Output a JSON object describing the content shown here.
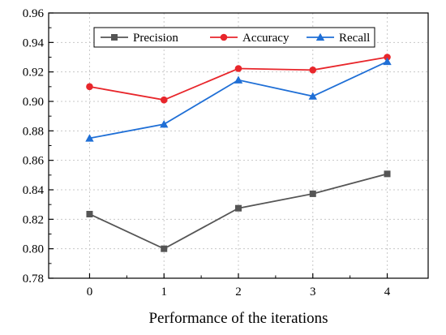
{
  "chart_data": {
    "type": "line",
    "title": "",
    "xlabel": "Performance of the iterations",
    "ylabel": "",
    "categories": [
      "0",
      "1",
      "2",
      "3",
      "4"
    ],
    "x": [
      0,
      1,
      2,
      3,
      4
    ],
    "xlim": [
      -0.55,
      4.55
    ],
    "ylim": [
      0.78,
      0.96
    ],
    "yticks": [
      "0.78",
      "0.80",
      "0.82",
      "0.84",
      "0.86",
      "0.88",
      "0.90",
      "0.92",
      "0.94",
      "0.96"
    ],
    "grid": true,
    "legend_position": "top-center",
    "series": [
      {
        "name": "Precision",
        "color": "#555555",
        "marker": "square",
        "values": [
          0.8235,
          0.8,
          0.8275,
          0.8373,
          0.8508
        ]
      },
      {
        "name": "Accuracy",
        "color": "#e8262b",
        "marker": "circle",
        "values": [
          0.91,
          0.901,
          0.9223,
          0.9213,
          0.93
        ]
      },
      {
        "name": "Recall",
        "color": "#1f6fd6",
        "marker": "triangle",
        "values": [
          0.875,
          0.8845,
          0.9145,
          0.9035,
          0.927
        ]
      }
    ]
  }
}
